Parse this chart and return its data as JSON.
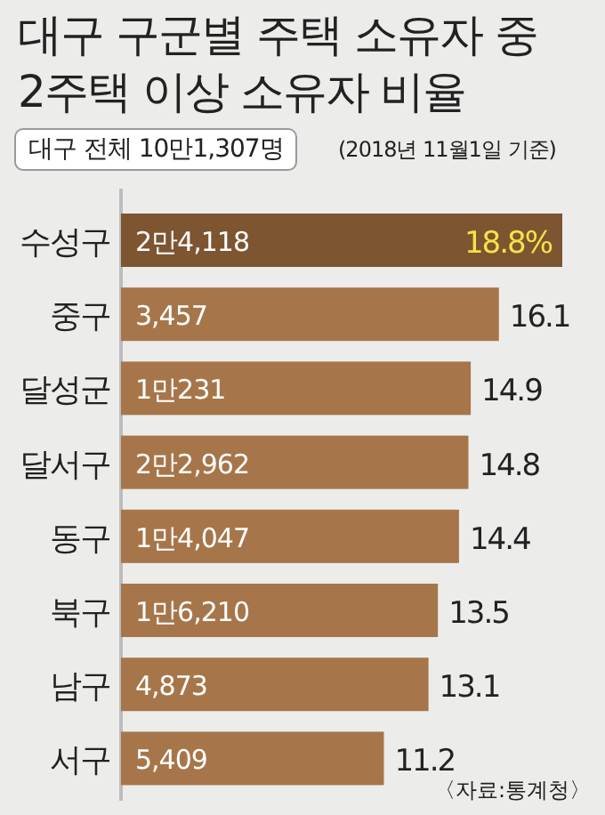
{
  "chart_data": {
    "type": "bar",
    "orientation": "horizontal",
    "title": "대구 구군별 주택 소유자 중 2주택 이상 소유자 비율",
    "subtitle": "대구 전체 10만1,307명",
    "categories": [
      "수성구",
      "중구",
      "달성군",
      "달서구",
      "동구",
      "북구",
      "남구",
      "서구"
    ],
    "values": [
      18.8,
      16.1,
      14.9,
      14.8,
      14.4,
      13.5,
      13.1,
      11.2
    ],
    "colors": [
      "#7d5530",
      "#a6764a",
      "#a6764a",
      "#a6764a",
      "#a6764a",
      "#a6764a",
      "#a6764a",
      "#a6764a"
    ],
    "value_labels": [
      "18.8%",
      "16.1",
      "14.9",
      "14.8",
      "14.4",
      "13.5",
      "13.1",
      "11.2"
    ],
    "annotations": [
      "(2018년 11월1일 기준)",
      {
        "text": "2만4,118",
        "y": "수성구"
      },
      {
        "text": "3,457",
        "y": "중구"
      },
      {
        "text": "1만231",
        "y": "달성군"
      },
      {
        "text": "2만2,962",
        "y": "달서구"
      },
      {
        "text": "1만4,047",
        "y": "동구"
      },
      {
        "text": "1만6,210",
        "y": "북구"
      },
      {
        "text": "4,873",
        "y": "남구"
      },
      {
        "text": "5,409",
        "y": "서구"
      },
      "〈자료:통계청〉"
    ]
  }
}
